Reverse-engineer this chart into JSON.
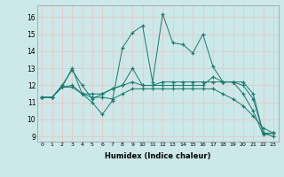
{
  "xlabel": "Humidex (Indice chaleur)",
  "bg_color": "#cce8e8",
  "grid_color": "#e8c8c8",
  "line_color": "#1a7a6e",
  "xlim": [
    -0.5,
    23.5
  ],
  "ylim": [
    8.7,
    16.7
  ],
  "xticks": [
    0,
    1,
    2,
    3,
    4,
    5,
    6,
    7,
    8,
    9,
    10,
    11,
    12,
    13,
    14,
    15,
    16,
    17,
    18,
    19,
    20,
    21,
    22,
    23
  ],
  "yticks": [
    9,
    10,
    11,
    12,
    13,
    14,
    15,
    16
  ],
  "series": [
    [
      11.3,
      11.3,
      11.9,
      13.0,
      11.5,
      11.0,
      10.3,
      11.1,
      14.2,
      15.1,
      15.5,
      12.2,
      16.2,
      14.5,
      14.4,
      13.9,
      15.0,
      13.1,
      12.2,
      12.2,
      11.5,
      10.5,
      9.1,
      9.2
    ],
    [
      11.3,
      11.3,
      11.9,
      12.0,
      11.5,
      11.5,
      11.5,
      11.8,
      12.0,
      12.2,
      12.0,
      12.0,
      12.2,
      12.2,
      12.2,
      12.2,
      12.2,
      12.2,
      12.2,
      12.2,
      12.2,
      11.5,
      9.2,
      9.2
    ],
    [
      11.3,
      11.3,
      12.0,
      12.9,
      12.0,
      11.2,
      11.5,
      11.8,
      12.0,
      13.0,
      12.0,
      12.0,
      12.0,
      12.0,
      12.0,
      12.0,
      12.0,
      12.5,
      12.2,
      12.2,
      12.0,
      11.2,
      9.2,
      9.0
    ],
    [
      11.3,
      11.3,
      11.9,
      11.9,
      11.5,
      11.3,
      11.3,
      11.2,
      11.5,
      11.8,
      11.8,
      11.8,
      11.8,
      11.8,
      11.8,
      11.8,
      11.8,
      11.8,
      11.5,
      11.2,
      10.8,
      10.2,
      9.5,
      9.2
    ]
  ]
}
